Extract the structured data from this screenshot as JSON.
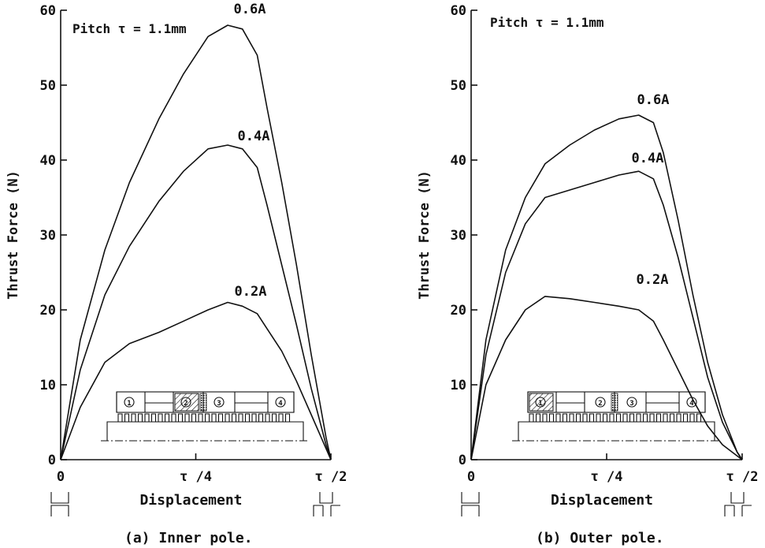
{
  "chart_data": [
    {
      "type": "line",
      "caption": "(a) Inner pole.",
      "annotation": "Pitch τ = 1.1mm",
      "xlabel": "Displacement",
      "ylabel": "Thrust Force (N)",
      "xlim": [
        0,
        0.55
      ],
      "ylim": [
        0,
        60
      ],
      "x_ticks": [
        {
          "value": 0,
          "label": "0"
        },
        {
          "value": 0.275,
          "label": "τ /4"
        },
        {
          "value": 0.55,
          "label": "τ /2"
        }
      ],
      "y_ticks": [
        {
          "value": 0,
          "label": "0"
        },
        {
          "value": 10,
          "label": "10"
        },
        {
          "value": 20,
          "label": "20"
        },
        {
          "value": 30,
          "label": "30"
        },
        {
          "value": 40,
          "label": "40"
        },
        {
          "value": 50,
          "label": "50"
        },
        {
          "value": 60,
          "label": "60"
        }
      ],
      "series": [
        {
          "name": "0.6A",
          "x": [
            0,
            0.04,
            0.09,
            0.14,
            0.2,
            0.25,
            0.3,
            0.34,
            0.37,
            0.4,
            0.42,
            0.45,
            0.48,
            0.51,
            0.54,
            0.55
          ],
          "y": [
            0,
            16,
            28,
            37,
            45.5,
            51.5,
            56.5,
            58,
            57.5,
            54,
            47,
            37,
            26,
            14,
            3,
            0
          ]
        },
        {
          "name": "0.4A",
          "x": [
            0,
            0.04,
            0.09,
            0.14,
            0.2,
            0.25,
            0.3,
            0.34,
            0.37,
            0.4,
            0.42,
            0.45,
            0.48,
            0.51,
            0.54,
            0.55
          ],
          "y": [
            0,
            12,
            22,
            28.5,
            34.5,
            38.5,
            41.5,
            42,
            41.5,
            39,
            34,
            26,
            18,
            9.5,
            2,
            0
          ]
        },
        {
          "name": "0.2A",
          "x": [
            0,
            0.04,
            0.09,
            0.14,
            0.2,
            0.25,
            0.3,
            0.34,
            0.37,
            0.4,
            0.42,
            0.45,
            0.48,
            0.51,
            0.54,
            0.55
          ],
          "y": [
            0,
            7,
            13,
            15.5,
            17,
            18.5,
            20,
            21,
            20.5,
            19.5,
            17.5,
            14.5,
            10.5,
            6,
            1.5,
            0
          ]
        }
      ]
    },
    {
      "type": "line",
      "caption": "(b) Outer pole.",
      "annotation": "Pitch τ = 1.1mm",
      "xlabel": "Displacement",
      "ylabel": "Thrust Force (N)",
      "xlim": [
        0,
        0.55
      ],
      "ylim": [
        0,
        60
      ],
      "x_ticks": [
        {
          "value": 0,
          "label": "0"
        },
        {
          "value": 0.275,
          "label": "τ /4"
        },
        {
          "value": 0.55,
          "label": "τ /2"
        }
      ],
      "y_ticks": [
        {
          "value": 0,
          "label": "0"
        },
        {
          "value": 10,
          "label": "10"
        },
        {
          "value": 20,
          "label": "20"
        },
        {
          "value": 30,
          "label": "30"
        },
        {
          "value": 40,
          "label": "40"
        },
        {
          "value": 50,
          "label": "50"
        },
        {
          "value": 60,
          "label": "60"
        }
      ],
      "series": [
        {
          "name": "0.6A",
          "x": [
            0,
            0.03,
            0.07,
            0.11,
            0.15,
            0.2,
            0.25,
            0.3,
            0.34,
            0.37,
            0.39,
            0.42,
            0.45,
            0.48,
            0.51,
            0.54,
            0.55
          ],
          "y": [
            0,
            16,
            28,
            35,
            39.5,
            42,
            44,
            45.5,
            46,
            45,
            41,
            32,
            22,
            13,
            6,
            1,
            0
          ]
        },
        {
          "name": "0.4A",
          "x": [
            0,
            0.03,
            0.07,
            0.11,
            0.15,
            0.2,
            0.25,
            0.3,
            0.34,
            0.37,
            0.39,
            0.42,
            0.45,
            0.48,
            0.51,
            0.54,
            0.55
          ],
          "y": [
            0,
            14,
            25,
            31.5,
            35,
            36,
            37,
            38,
            38.5,
            37.5,
            34,
            27,
            19,
            11,
            5,
            1,
            0
          ]
        },
        {
          "name": "0.2A",
          "x": [
            0,
            0.03,
            0.07,
            0.11,
            0.15,
            0.2,
            0.25,
            0.3,
            0.34,
            0.37,
            0.39,
            0.42,
            0.45,
            0.48,
            0.51,
            0.54,
            0.55
          ],
          "y": [
            0,
            10,
            16,
            20,
            21.8,
            21.5,
            21,
            20.5,
            20,
            18.5,
            16,
            12,
            8,
            4.5,
            2,
            0.5,
            0
          ]
        }
      ]
    }
  ]
}
